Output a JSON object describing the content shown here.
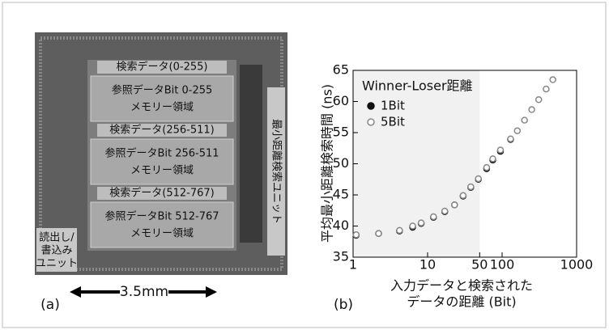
{
  "photo": {
    "blocks": [
      {
        "search": "検索データ(0-255)",
        "ref": "参照データBit 0-255",
        "mem": "メモリー領域"
      },
      {
        "search": "検索データ(256-511)",
        "ref": "参照データBit 256-511",
        "mem": "メモリー領域"
      },
      {
        "search": "検索データ(512-767)",
        "ref": "参照データBit 512-767",
        "mem": "メモリー領域"
      }
    ],
    "min_unit": "最小距離検索ユニット",
    "rw_unit": [
      "読出し/",
      "書込み",
      "ユニット"
    ],
    "scale": "3.5mm",
    "panel": "(a)"
  },
  "chart_data": {
    "type": "scatter",
    "panel": "(b)",
    "legend_title": "Winner-Loser距離",
    "xlabel": [
      "入力データと検索された",
      "データの距離 (Bit)"
    ],
    "ylabel": "平均最小距離検索時間 (ns)",
    "xlog": true,
    "xlim": [
      1,
      1000
    ],
    "xticks": [
      1,
      10,
      50,
      100,
      1000
    ],
    "ylim": [
      35,
      65
    ],
    "yticks": [
      35,
      40,
      45,
      50,
      55,
      60,
      65
    ],
    "shaded_range": [
      1,
      50
    ],
    "x": [
      1.1,
      2.2,
      4.2,
      6.3,
      8.2,
      12,
      17,
      23,
      30,
      38,
      48,
      62,
      75,
      95,
      130,
      160,
      200,
      250,
      310,
      390,
      480
    ],
    "series": [
      {
        "name": "1Bit",
        "color": "#111111",
        "filled": true,
        "values": [
          38.5,
          38.8,
          39.2,
          39.8,
          40.4,
          41.4,
          42.3,
          43.4,
          44.8,
          46.2,
          47.5,
          49.2,
          50.6,
          52.0,
          53.9,
          null,
          null,
          null,
          null,
          null,
          null
        ]
      },
      {
        "name": "5Bit",
        "color": "#888888",
        "filled": false,
        "values": [
          38.6,
          38.8,
          39.3,
          40.0,
          40.5,
          41.5,
          42.4,
          43.4,
          44.9,
          46.3,
          47.6,
          49.4,
          50.8,
          52.2,
          54.0,
          55.3,
          57.0,
          58.7,
          60.3,
          62.0,
          63.5
        ]
      }
    ]
  }
}
